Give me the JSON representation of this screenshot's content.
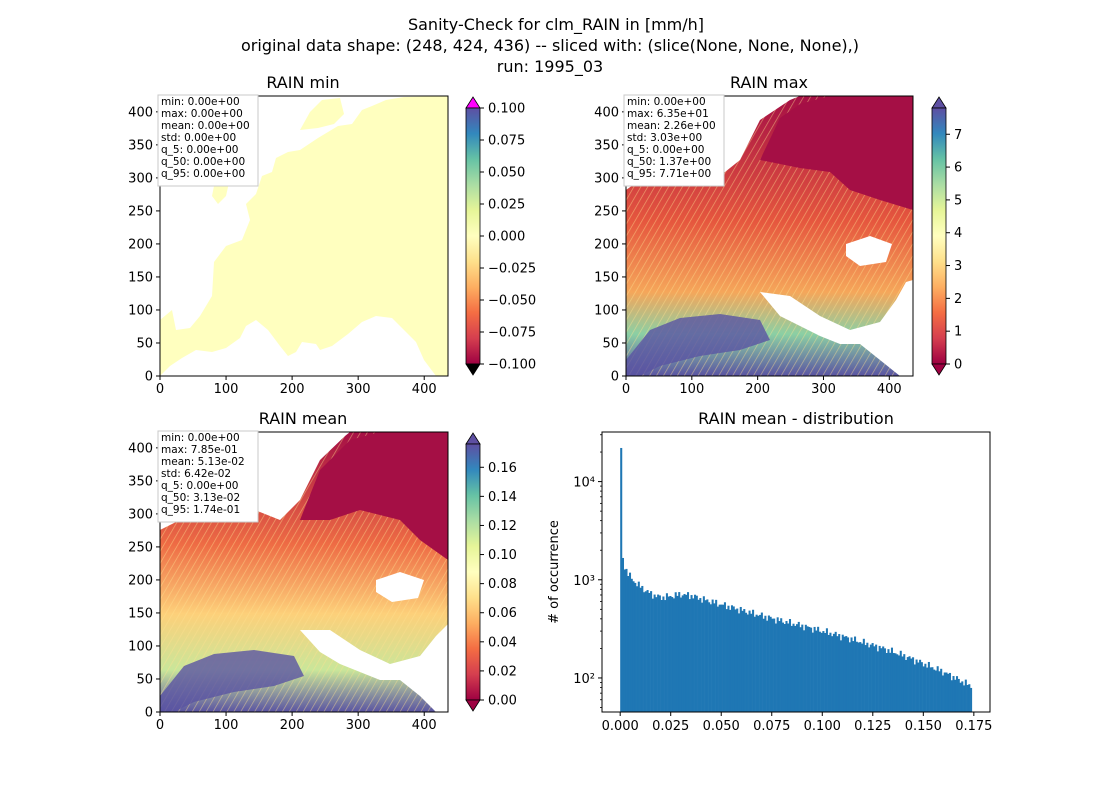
{
  "figure": {
    "title_lines": [
      "Sanity-Check for clm_RAIN in [mm/h]",
      "original data shape: (248, 424, 436) -- sliced with: (slice(None, None, None),)",
      "run: 1995_03"
    ]
  },
  "chart_data": [
    {
      "type": "heatmap",
      "title": "RAIN min",
      "xlim": [
        0,
        436
      ],
      "ylim": [
        0,
        424
      ],
      "xticks": [
        "0",
        "100",
        "200",
        "300",
        "400"
      ],
      "yticks": [
        "0",
        "50",
        "100",
        "150",
        "200",
        "250",
        "300",
        "350",
        "400"
      ],
      "colormap": "Spectral",
      "colorbar": {
        "range": [
          -0.1,
          0.1
        ],
        "ticks": [
          "0.100",
          "0.075",
          "0.050",
          "0.025",
          "0.000",
          "−0.025",
          "−0.050",
          "−0.075",
          "−0.100"
        ],
        "extend_top_color": "#ff00ff",
        "extend_bottom_color": "#000000"
      },
      "stats": [
        "min: 0.00e+00",
        "max: 0.00e+00",
        "mean: 0.00e+00",
        "std: 0.00e+00",
        "q_5: 0.00e+00",
        "q_50: 0.00e+00",
        "q_95: 0.00e+00"
      ]
    },
    {
      "type": "heatmap",
      "title": "RAIN max",
      "xlim": [
        0,
        436
      ],
      "ylim": [
        0,
        424
      ],
      "xticks": [
        "0",
        "100",
        "200",
        "300",
        "400"
      ],
      "yticks": [
        "0",
        "50",
        "100",
        "150",
        "200",
        "250",
        "300",
        "350",
        "400"
      ],
      "colormap": "Spectral",
      "colorbar": {
        "range": [
          0,
          7.8
        ],
        "ticks": [
          "7",
          "6",
          "5",
          "4",
          "3",
          "2",
          "1",
          "0"
        ]
      },
      "stats": [
        "min: 0.00e+00",
        "max: 6.35e+01",
        "mean: 2.26e+00",
        "std: 3.03e+00",
        "q_5: 0.00e+00",
        "q_50: 1.37e+00",
        "q_95: 7.71e+00"
      ]
    },
    {
      "type": "heatmap",
      "title": "RAIN mean",
      "xlim": [
        0,
        436
      ],
      "ylim": [
        0,
        424
      ],
      "xticks": [
        "0",
        "100",
        "200",
        "300",
        "400"
      ],
      "yticks": [
        "0",
        "50",
        "100",
        "150",
        "200",
        "250",
        "300",
        "350",
        "400"
      ],
      "colormap": "Spectral",
      "colorbar": {
        "range": [
          0,
          0.176
        ],
        "ticks": [
          "0.16",
          "0.14",
          "0.12",
          "0.10",
          "0.08",
          "0.06",
          "0.04",
          "0.02",
          "0.00"
        ]
      },
      "stats": [
        "min: 0.00e+00",
        "max: 7.85e-01",
        "mean: 5.13e-02",
        "std: 6.42e-02",
        "q_5: 0.00e+00",
        "q_50: 3.13e-02",
        "q_95: 1.74e-01"
      ]
    },
    {
      "type": "bar",
      "title": "RAIN mean - distribution",
      "ylabel": "# of occurrence",
      "yscale": "log",
      "xlim": [
        -0.009,
        0.183
      ],
      "ylim": [
        45,
        32000
      ],
      "xticks": [
        "0.000",
        "0.025",
        "0.050",
        "0.075",
        "0.100",
        "0.125",
        "0.150",
        "0.175"
      ],
      "yticks": [
        "10²",
        "10³",
        "10⁴"
      ],
      "bar_color": "#1f77b4",
      "bin_range": [
        0,
        0.174
      ],
      "n_bins": 200,
      "profile": [
        [
          0.0,
          22000
        ],
        [
          0.001,
          1700
        ],
        [
          0.002,
          1400
        ],
        [
          0.004,
          1150
        ],
        [
          0.006,
          1000
        ],
        [
          0.01,
          850
        ],
        [
          0.015,
          720
        ],
        [
          0.02,
          660
        ],
        [
          0.025,
          680
        ],
        [
          0.03,
          710
        ],
        [
          0.035,
          690
        ],
        [
          0.04,
          640
        ],
        [
          0.05,
          560
        ],
        [
          0.06,
          490
        ],
        [
          0.07,
          430
        ],
        [
          0.08,
          380
        ],
        [
          0.09,
          340
        ],
        [
          0.1,
          300
        ],
        [
          0.11,
          265
        ],
        [
          0.12,
          230
        ],
        [
          0.13,
          200
        ],
        [
          0.14,
          170
        ],
        [
          0.15,
          140
        ],
        [
          0.16,
          115
        ],
        [
          0.17,
          90
        ],
        [
          0.174,
          82
        ]
      ]
    }
  ]
}
